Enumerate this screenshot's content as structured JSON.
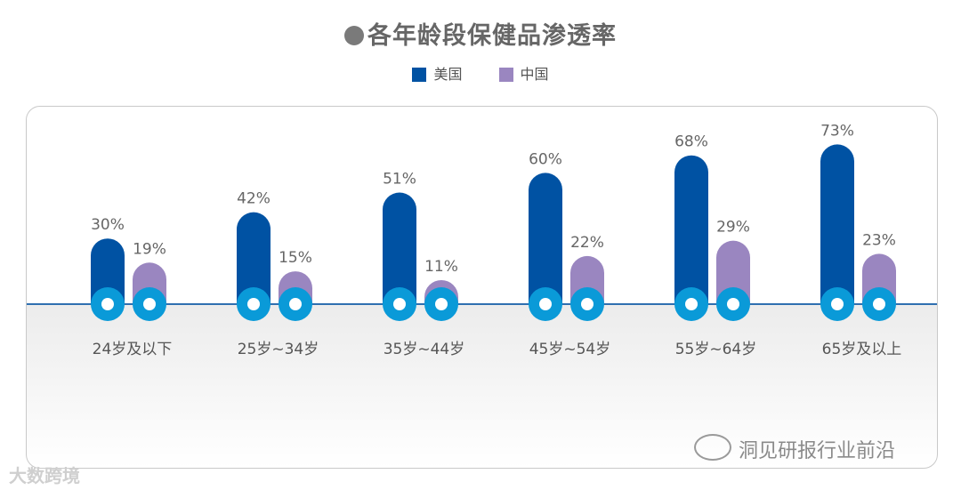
{
  "title": "各年龄段保健品渗透率",
  "legend": [
    {
      "label": "美国",
      "color": "#0052a3"
    },
    {
      "label": "中国",
      "color": "#9a86c0"
    }
  ],
  "chart_data": {
    "type": "bar",
    "title": "各年龄段保健品渗透率",
    "categories": [
      "24岁及以下",
      "25岁~34岁",
      "35岁~44岁",
      "45岁~54岁",
      "55岁~64岁",
      "65岁及以上"
    ],
    "series": [
      {
        "name": "美国",
        "values": [
          30,
          42,
          51,
          60,
          68,
          73
        ],
        "labels": [
          "30%",
          "42%",
          "51%",
          "60%",
          "68%",
          "73%"
        ],
        "color": "#0052a3"
      },
      {
        "name": "中国",
        "values": [
          19,
          15,
          11,
          22,
          29,
          23
        ],
        "labels": [
          "19%",
          "15%",
          "11%",
          "22%",
          "29%",
          "23%"
        ],
        "color": "#9a86c0"
      }
    ],
    "axis_color": "#2f6fb0",
    "base_circle_color": "#0a9ad8",
    "xlabel": "",
    "ylabel": ""
  },
  "watermarks": {
    "left": "大数跨境",
    "right": "洞见研报行业前沿"
  }
}
